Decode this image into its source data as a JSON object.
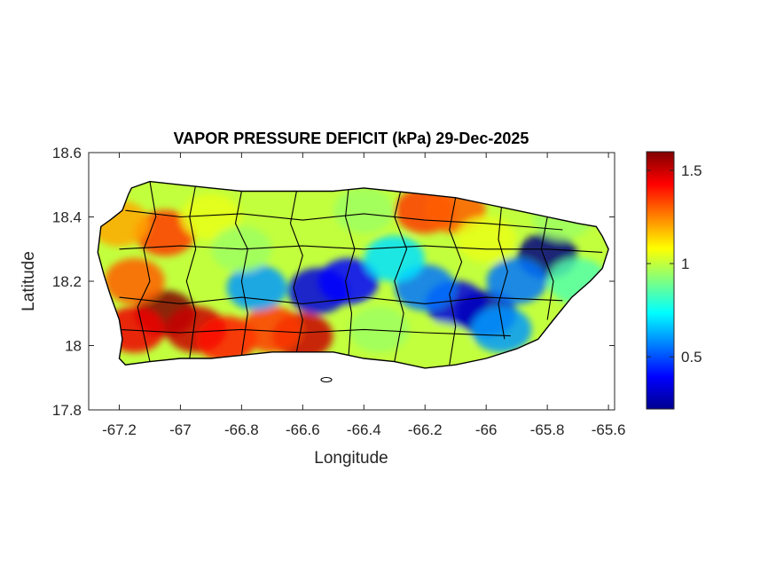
{
  "chart_data": {
    "type": "heatmap",
    "title": "VAPOR PRESSURE DEFICIT (kPa) 29-Dec-2025",
    "xlabel": "Longitude",
    "ylabel": "Latitude",
    "xlim": [
      -67.3,
      -65.58
    ],
    "ylim": [
      17.8,
      18.6
    ],
    "x_ticks": [
      -67.2,
      -67,
      -66.8,
      -66.6,
      -66.4,
      -66.2,
      -66,
      -65.8,
      -65.6
    ],
    "x_tick_labels": [
      "-67.2",
      "-67",
      "-66.8",
      "-66.6",
      "-66.4",
      "-66.2",
      "-66",
      "-65.8",
      "-65.6"
    ],
    "y_ticks": [
      17.8,
      18,
      18.2,
      18.4,
      18.6
    ],
    "y_tick_labels": [
      "17.8",
      "18",
      "18.2",
      "18.4",
      "18.6"
    ],
    "colorbar": {
      "colormap": "jet",
      "range": [
        0.22,
        1.6
      ],
      "ticks": [
        0.5,
        1,
        1.5
      ],
      "tick_labels": [
        "0.5",
        "1",
        "1.5"
      ]
    },
    "island_outline": [
      [
        -67.26,
        18.37
      ],
      [
        -67.23,
        18.39
      ],
      [
        -67.19,
        18.42
      ],
      [
        -67.17,
        18.47
      ],
      [
        -67.16,
        18.49
      ],
      [
        -67.1,
        18.51
      ],
      [
        -67.0,
        18.5
      ],
      [
        -66.9,
        18.49
      ],
      [
        -66.8,
        18.48
      ],
      [
        -66.7,
        18.48
      ],
      [
        -66.6,
        18.48
      ],
      [
        -66.5,
        18.48
      ],
      [
        -66.4,
        18.49
      ],
      [
        -66.3,
        18.48
      ],
      [
        -66.2,
        18.47
      ],
      [
        -66.1,
        18.46
      ],
      [
        -66.0,
        18.44
      ],
      [
        -65.9,
        18.42
      ],
      [
        -65.8,
        18.4
      ],
      [
        -65.7,
        18.38
      ],
      [
        -65.64,
        18.37
      ],
      [
        -65.62,
        18.34
      ],
      [
        -65.6,
        18.3
      ],
      [
        -65.62,
        18.24
      ],
      [
        -65.66,
        18.2
      ],
      [
        -65.72,
        18.15
      ],
      [
        -65.78,
        18.08
      ],
      [
        -65.83,
        18.02
      ],
      [
        -65.9,
        17.99
      ],
      [
        -66.0,
        17.96
      ],
      [
        -66.1,
        17.94
      ],
      [
        -66.2,
        17.93
      ],
      [
        -66.3,
        17.95
      ],
      [
        -66.4,
        17.96
      ],
      [
        -66.5,
        17.98
      ],
      [
        -66.6,
        17.98
      ],
      [
        -66.7,
        17.98
      ],
      [
        -66.8,
        17.97
      ],
      [
        -66.9,
        17.96
      ],
      [
        -67.0,
        17.96
      ],
      [
        -67.1,
        17.95
      ],
      [
        -67.18,
        17.94
      ],
      [
        -67.2,
        17.96
      ],
      [
        -67.19,
        18.02
      ],
      [
        -67.2,
        18.08
      ],
      [
        -67.23,
        18.16
      ],
      [
        -67.25,
        18.22
      ],
      [
        -67.27,
        18.29
      ],
      [
        -67.26,
        18.37
      ]
    ],
    "vpd_field": [
      {
        "lon": -67.05,
        "lat": 18.1,
        "value": 1.6
      },
      {
        "lon": -67.15,
        "lat": 18.05,
        "value": 1.45
      },
      {
        "lon": -66.95,
        "lat": 18.05,
        "value": 1.5
      },
      {
        "lon": -67.15,
        "lat": 18.2,
        "value": 1.3
      },
      {
        "lon": -67.05,
        "lat": 18.35,
        "value": 1.35
      },
      {
        "lon": -66.85,
        "lat": 18.02,
        "value": 1.4
      },
      {
        "lon": -66.6,
        "lat": 18.03,
        "value": 1.5
      },
      {
        "lon": -66.2,
        "lat": 18.42,
        "value": 1.35
      },
      {
        "lon": -66.1,
        "lat": 18.42,
        "value": 1.3
      },
      {
        "lon": -66.7,
        "lat": 18.05,
        "value": 1.35
      },
      {
        "lon": -66.55,
        "lat": 18.17,
        "value": 0.35
      },
      {
        "lon": -66.45,
        "lat": 18.2,
        "value": 0.4
      },
      {
        "lon": -66.75,
        "lat": 18.18,
        "value": 0.6
      },
      {
        "lon": -66.1,
        "lat": 18.13,
        "value": 0.35
      },
      {
        "lon": -66.0,
        "lat": 18.1,
        "value": 0.3
      },
      {
        "lon": -66.2,
        "lat": 18.18,
        "value": 0.55
      },
      {
        "lon": -65.8,
        "lat": 18.28,
        "value": 0.22
      },
      {
        "lon": -65.9,
        "lat": 18.2,
        "value": 0.55
      },
      {
        "lon": -65.95,
        "lat": 18.05,
        "value": 0.6
      },
      {
        "lon": -66.3,
        "lat": 18.27,
        "value": 0.7
      },
      {
        "lon": -65.7,
        "lat": 18.2,
        "value": 0.85
      },
      {
        "lon": -66.9,
        "lat": 18.4,
        "value": 1.05
      },
      {
        "lon": -66.6,
        "lat": 18.4,
        "value": 1.0
      },
      {
        "lon": -66.4,
        "lat": 18.42,
        "value": 0.95
      },
      {
        "lon": -66.8,
        "lat": 18.3,
        "value": 0.95
      },
      {
        "lon": -66.35,
        "lat": 18.05,
        "value": 0.95
      },
      {
        "lon": -66.15,
        "lat": 18.0,
        "value": 1.0
      },
      {
        "lon": -65.75,
        "lat": 18.4,
        "value": 0.95
      },
      {
        "lon": -67.2,
        "lat": 18.38,
        "value": 1.2
      },
      {
        "lon": -66.0,
        "lat": 18.33,
        "value": 1.05
      }
    ]
  }
}
